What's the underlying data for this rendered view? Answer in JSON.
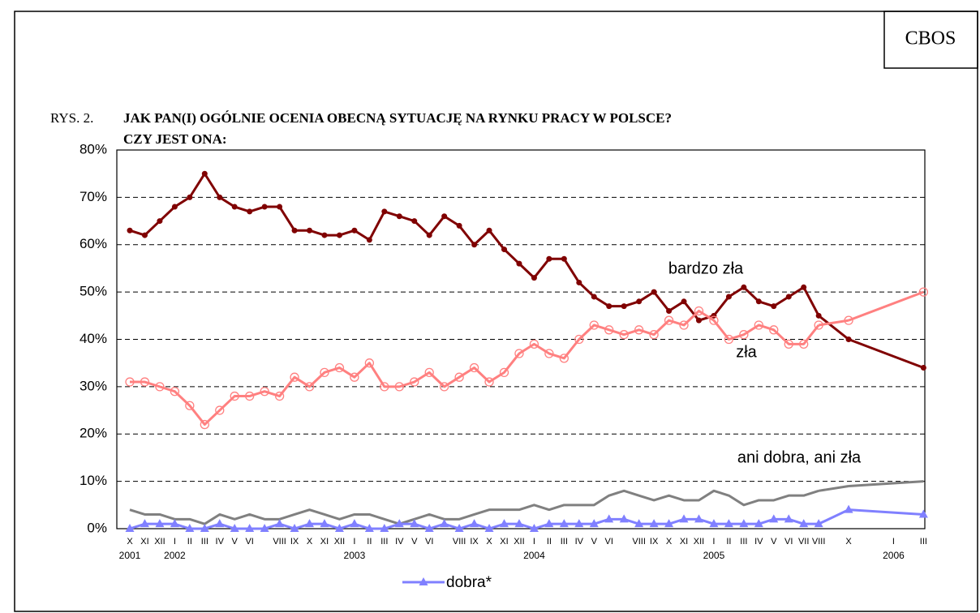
{
  "badge": "CBOS",
  "figure_label": "RYS. 2.",
  "chart_data": {
    "type": "line",
    "title_lines": [
      "JAK PAN(I) OGÓLNIE OCENIA OBECNĄ SYTUACJĘ NA RYNKU PRACY W POLSCE?",
      "CZY JEST ONA:"
    ],
    "categories": [
      "X",
      "XI",
      "XII",
      "I",
      "II",
      "III",
      "IV",
      "V",
      "VI",
      null,
      "VIII",
      "IX",
      "X",
      "XI",
      "XII",
      "I",
      "II",
      "III",
      "IV",
      "V",
      "VI",
      null,
      "VIII",
      "IX",
      "X",
      "XI",
      "XII",
      "I",
      "II",
      "III",
      "IV",
      "V",
      "VI",
      null,
      "VIII",
      "IX",
      "X",
      "XI",
      "XII",
      "I",
      "II",
      "III",
      "IV",
      "V",
      "VI",
      "VII",
      "VIII",
      null,
      "X",
      null,
      null,
      "I",
      null,
      "III"
    ],
    "year_labels": [
      "2001",
      null,
      null,
      "2002",
      null,
      null,
      null,
      null,
      null,
      null,
      null,
      null,
      null,
      null,
      null,
      "2003",
      null,
      null,
      null,
      null,
      null,
      null,
      null,
      null,
      null,
      null,
      null,
      "2004",
      null,
      null,
      null,
      null,
      null,
      null,
      null,
      null,
      null,
      null,
      null,
      "2005",
      null,
      null,
      null,
      null,
      null,
      null,
      null,
      null,
      null,
      null,
      null,
      "2006",
      null,
      null
    ],
    "series": [
      {
        "name": "bardzo zła",
        "color": "#800000",
        "marker": "dot",
        "values": [
          63,
          62,
          65,
          68,
          70,
          75,
          70,
          68,
          67,
          68,
          68,
          63,
          63,
          62,
          62,
          63,
          61,
          67,
          66,
          65,
          62,
          66,
          64,
          60,
          63,
          59,
          56,
          53,
          57,
          57,
          52,
          49,
          47,
          47,
          48,
          50,
          46,
          48,
          44,
          45,
          49,
          51,
          48,
          47,
          49,
          51,
          45,
          null,
          40,
          null,
          null,
          null,
          null,
          34
        ]
      },
      {
        "name": "zła",
        "color": "#ff8080",
        "marker": "ring",
        "values": [
          31,
          31,
          30,
          29,
          26,
          22,
          25,
          28,
          28,
          29,
          28,
          32,
          30,
          33,
          34,
          32,
          35,
          30,
          30,
          31,
          33,
          30,
          32,
          34,
          31,
          33,
          37,
          39,
          37,
          36,
          40,
          43,
          42,
          41,
          42,
          41,
          44,
          43,
          46,
          44,
          40,
          41,
          43,
          42,
          39,
          39,
          43,
          null,
          44,
          null,
          null,
          null,
          null,
          50
        ]
      },
      {
        "name": "ani dobra, ani zła",
        "color": "#808080",
        "marker": "none",
        "values": [
          4,
          3,
          3,
          2,
          2,
          1,
          3,
          2,
          3,
          2,
          2,
          3,
          4,
          3,
          2,
          3,
          3,
          2,
          1,
          2,
          3,
          2,
          2,
          3,
          4,
          4,
          4,
          5,
          4,
          5,
          5,
          5,
          7,
          8,
          7,
          6,
          7,
          6,
          6,
          8,
          7,
          5,
          6,
          6,
          7,
          7,
          8,
          null,
          9,
          null,
          null,
          null,
          null,
          10
        ]
      },
      {
        "name": "dobra*",
        "color": "#8080ff",
        "marker": "triangle",
        "values": [
          0,
          1,
          1,
          1,
          0,
          0,
          1,
          0,
          0,
          0,
          1,
          0,
          1,
          1,
          0,
          1,
          0,
          0,
          1,
          1,
          0,
          1,
          0,
          1,
          0,
          1,
          1,
          0,
          1,
          1,
          1,
          1,
          2,
          2,
          1,
          1,
          1,
          2,
          2,
          1,
          1,
          1,
          1,
          2,
          2,
          1,
          1,
          null,
          4,
          null,
          null,
          null,
          null,
          3
        ]
      }
    ],
    "ylim": [
      0,
      80
    ],
    "yticks": [
      {
        "value": 0,
        "label": "0%"
      },
      {
        "value": 10,
        "label": "10%"
      },
      {
        "value": 20,
        "label": "20%"
      },
      {
        "value": 30,
        "label": "30%"
      },
      {
        "value": 40,
        "label": "40%"
      },
      {
        "value": 50,
        "label": "50%"
      },
      {
        "value": 60,
        "label": "60%"
      },
      {
        "value": 70,
        "label": "70%"
      },
      {
        "value": 80,
        "label": "80%"
      }
    ],
    "grid": true
  }
}
